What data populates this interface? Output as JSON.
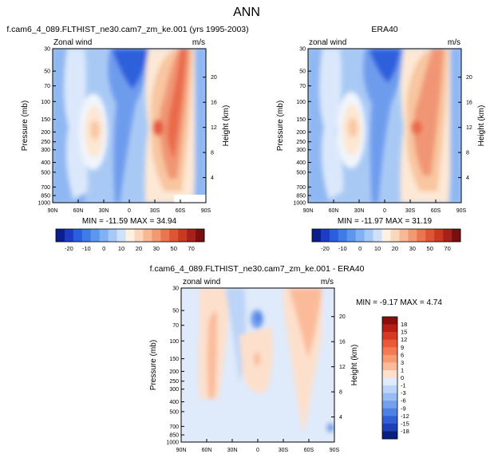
{
  "page": {
    "title": "ANN"
  },
  "common": {
    "ylabel_left": "Pressure (mb)",
    "ylabel_right": "Height (km)",
    "pressure_ticks": [
      "30",
      "50",
      "70",
      "100",
      "150",
      "200",
      "250",
      "300",
      "400",
      "500",
      "700",
      "850",
      "1000"
    ],
    "height_ticks": [
      "20",
      "16",
      "12",
      "8",
      "4"
    ],
    "lat_ticks": [
      "90N",
      "60N",
      "30N",
      "0",
      "30S",
      "60S",
      "90S"
    ]
  },
  "chart_data": [
    {
      "type": "heatmap",
      "title": "f.cam6_4_089.FLTHIST_ne30.cam7_zm_ke.001 (yrs 1995-2003)",
      "left_label": "Zonal wind",
      "right_label": "m/s",
      "stats": "MIN = -11.59  MAX = 34.94",
      "colorbar": {
        "tick_labels": [
          "-20",
          "-10",
          "0",
          "10",
          "20",
          "30",
          "50",
          "70"
        ],
        "colors": [
          "#0a1e8c",
          "#1d3bc4",
          "#2a5ee0",
          "#3f7ce8",
          "#5e96ef",
          "#82b1f3",
          "#a7c9f6",
          "#cfe1f9",
          "#fdf1e3",
          "#fbd8bb",
          "#f7b994",
          "#f29873",
          "#eb7550",
          "#de5535",
          "#c93922",
          "#a8201a",
          "#7a0e0e"
        ]
      },
      "features": {
        "jet_south_max_ms": 34.94,
        "field_min_ms": -11.59
      }
    },
    {
      "type": "heatmap",
      "title": "ERA40",
      "left_label": "zonal wind",
      "right_label": "m/s",
      "stats": "MIN = -11.97  MAX =  31.19",
      "colorbar": {
        "tick_labels": [
          "-20",
          "-10",
          "0",
          "10",
          "20",
          "30",
          "50",
          "70"
        ],
        "colors": [
          "#0a1e8c",
          "#1d3bc4",
          "#2a5ee0",
          "#3f7ce8",
          "#5e96ef",
          "#82b1f3",
          "#a7c9f6",
          "#cfe1f9",
          "#fdf1e3",
          "#fbd8bb",
          "#f7b994",
          "#f29873",
          "#eb7550",
          "#de5535",
          "#c93922",
          "#a8201a",
          "#7a0e0e"
        ]
      },
      "features": {
        "jet_south_max_ms": 31.19,
        "field_min_ms": -11.97
      }
    },
    {
      "type": "heatmap",
      "title": "f.cam6_4_089.FLTHIST_ne30.cam7_zm_ke.001 - ERA40",
      "left_label": "zonal wind",
      "right_label": "m/s",
      "stats": "MIN =  -9.17  MAX =   4.74",
      "colorbar": {
        "tick_labels": [
          "18",
          "15",
          "12",
          "9",
          "6",
          "3",
          "1",
          "0",
          "-1",
          "-3",
          "-6",
          "-9",
          "-12",
          "-15",
          "-18"
        ],
        "colors": [
          "#8b0d0d",
          "#b51f16",
          "#d63a24",
          "#eb5a38",
          "#f47a55",
          "#f79b77",
          "#fbbb9a",
          "#fde0cc",
          "#dfeafb",
          "#bcd4f7",
          "#98bcf1",
          "#74a0ec",
          "#4f80e4",
          "#325fd6",
          "#1d40b7",
          "#0a1e80"
        ]
      },
      "features": {
        "diff_min_ms": -9.17,
        "diff_max_ms": 4.74
      }
    }
  ]
}
